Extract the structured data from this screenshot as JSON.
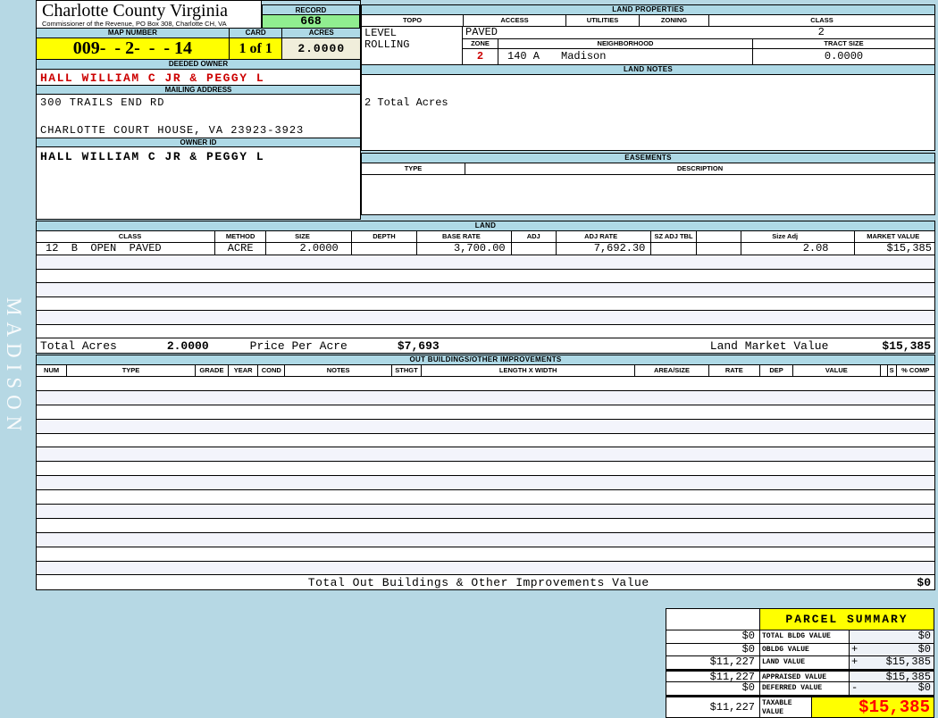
{
  "watermark": "MADISON",
  "colors": {
    "highlight_yellow": "#ffff00",
    "record_green": "#90ee90",
    "acres_cream": "#f0eedb",
    "alert_red": "#cc0000",
    "taxable_red": "#ff0000",
    "panel_blue": "#aed9e6"
  },
  "header": {
    "county": "Charlotte County Virginia",
    "commissioner": "Commissioner of the Revenue, PO Box 308, Charlotte CH, VA",
    "record_label": "RECORD",
    "record_value": "668",
    "map_number_label": "MAP NUMBER",
    "map_number_value": "009-  - 2-  -  - 14",
    "card_label": "CARD",
    "card_value": "1 of 1",
    "acres_label": "ACRES",
    "acres_value": "2.0000"
  },
  "owner": {
    "deeded_owner_label": "DEEDED OWNER",
    "deeded_owner": "HALL WILLIAM C JR & PEGGY L",
    "mailing_address_label": "MAILING ADDRESS",
    "address_line1": "300 TRAILS END RD",
    "address_line2": "CHARLOTTE COURT HOUSE, VA 23923-3923",
    "owner_id_label": "OWNER ID",
    "owner_id": "HALL WILLIAM C JR & PEGGY L"
  },
  "land_properties": {
    "title": "LAND PROPERTIES",
    "headers": [
      "TOPO",
      "ACCESS",
      "UTILITIES",
      "ZONING",
      "CLASS"
    ],
    "topo_values": [
      "LEVEL",
      "ROLLING"
    ],
    "access_value": "PAVED",
    "class_value": "2",
    "zone_label": "ZONE",
    "zone_value": "2",
    "neighborhood_label": "NEIGHBORHOOD",
    "neighborhood_code": "140 A",
    "neighborhood_name": "Madison",
    "tract_size_label": "TRACT SIZE",
    "tract_size_value": "0.0000"
  },
  "land_notes": {
    "title": "LAND NOTES",
    "note": "2 Total Acres"
  },
  "easements": {
    "title": "EASEMENTS",
    "type_label": "TYPE",
    "description_label": "DESCRIPTION"
  },
  "land": {
    "title": "LAND",
    "headers": [
      "CLASS",
      "METHOD",
      "SIZE",
      "DEPTH",
      "BASE RATE",
      "ADJ",
      "ADJ RATE",
      "SZ ADJ TBL",
      "",
      "Size Adj",
      "MARKET VALUE"
    ],
    "empty_row_count": 6,
    "rows": [
      {
        "class": "12  B  OPEN  PAVED",
        "method": "ACRE",
        "size": "2.0000",
        "depth": "",
        "base_rate": "3,700.00",
        "adj": "",
        "adj_rate": "7,692.30",
        "sz_adj_tbl": "",
        "blank": "",
        "size_adj": "2.08",
        "market_value": "$15,385"
      }
    ],
    "totals": {
      "total_acres_label": "Total Acres",
      "total_acres": "2.0000",
      "price_per_acre_label": "Price Per Acre",
      "price_per_acre": "$7,693",
      "land_market_value_label": "Land Market Value",
      "land_market_value": "$15,385"
    }
  },
  "out_buildings": {
    "title": "OUT BUILDINGS/OTHER IMPROVEMENTS",
    "headers": [
      "NUM",
      "TYPE",
      "GRADE",
      "YEAR",
      "COND",
      "NOTES",
      "STHGT",
      "LENGTH X WIDTH",
      "AREA/SIZE",
      "RATE",
      "DEP",
      "VALUE",
      "",
      "S",
      "% COMP"
    ],
    "empty_row_count": 14,
    "total_label": "Total Out Buildings & Other Improvements Value",
    "total_value": "$0"
  },
  "parcel_summary": {
    "title": "PARCEL SUMMARY",
    "rows": [
      {
        "left_value": "$0",
        "label": "TOTAL BLDG VALUE",
        "op": "",
        "value": "$0"
      },
      {
        "left_value": "$0",
        "label": "OBLDG VALUE",
        "op": "+",
        "value": "$0"
      },
      {
        "left_value": "$11,227",
        "label": "LAND VALUE",
        "op": "+",
        "value": "$15,385"
      },
      {
        "left_value": "$11,227",
        "label": "APPRAISED VALUE",
        "op": "",
        "value": "$15,385"
      },
      {
        "left_value": "$0",
        "label": "DEFERRED VALUE",
        "op": "-",
        "value": "$0"
      },
      {
        "left_value": "$11,227",
        "label": "TAXABLE VALUE",
        "op": "",
        "value": "$15,385"
      }
    ]
  }
}
